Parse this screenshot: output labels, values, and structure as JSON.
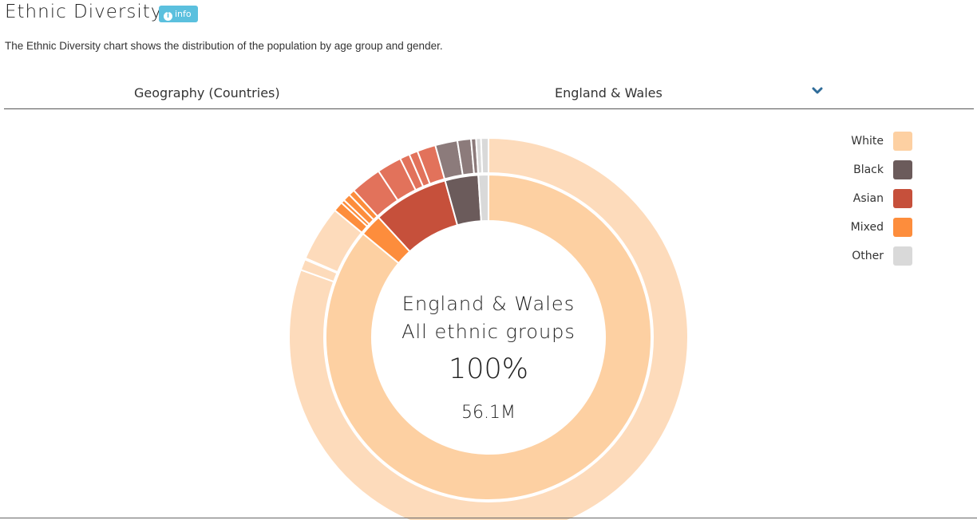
{
  "header": {
    "title": "Ethnic Diversity",
    "info_label": "info",
    "description": "The Ethnic Diversity chart shows the distribution of the population by age group and gender."
  },
  "filter": {
    "label": "Geography (Countries)",
    "selected": "England & Wales",
    "icon": "chevron-down-icon"
  },
  "legend": [
    {
      "label": "White",
      "color": "#fdd0a2"
    },
    {
      "label": "Black",
      "color": "#6b5b5b"
    },
    {
      "label": "Asian",
      "color": "#c6503b"
    },
    {
      "label": "Mixed",
      "color": "#fd8d3c"
    },
    {
      "label": "Other",
      "color": "#d9d9d9"
    }
  ],
  "center": {
    "line1": "England & Wales",
    "line2": "All ethnic groups",
    "percent": "100%",
    "total": "56.1M"
  },
  "chart_data": {
    "type": "pie",
    "title": "",
    "inner_ring": [
      {
        "name": "White",
        "value": 86.0,
        "color": "#fdd0a2"
      },
      {
        "name": "Mixed",
        "value": 2.2,
        "color": "#fd8d3c"
      },
      {
        "name": "Asian",
        "value": 7.5,
        "color": "#c6503b"
      },
      {
        "name": "Black",
        "value": 3.3,
        "color": "#6b5b5b"
      },
      {
        "name": "Other",
        "value": 1.0,
        "color": "#d9d9d9"
      }
    ],
    "outer_ring": [
      {
        "group": "White",
        "value": 80.5,
        "color": "#fddbbb"
      },
      {
        "group": "White",
        "value": 0.9,
        "color": "#fddbbb"
      },
      {
        "group": "White",
        "value": 0.1,
        "color": "#fddbbb"
      },
      {
        "group": "White",
        "value": 4.5,
        "color": "#fddbbb"
      },
      {
        "group": "Mixed",
        "value": 0.8,
        "color": "#fd8d3c"
      },
      {
        "group": "Mixed",
        "value": 0.3,
        "color": "#fd8d3c"
      },
      {
        "group": "Mixed",
        "value": 0.6,
        "color": "#fd8d3c"
      },
      {
        "group": "Mixed",
        "value": 0.5,
        "color": "#fd8d3c"
      },
      {
        "group": "Asian",
        "value": 2.5,
        "color": "#e2725b"
      },
      {
        "group": "Asian",
        "value": 2.0,
        "color": "#e2725b"
      },
      {
        "group": "Asian",
        "value": 0.8,
        "color": "#e2725b"
      },
      {
        "group": "Asian",
        "value": 0.7,
        "color": "#e2725b"
      },
      {
        "group": "Asian",
        "value": 1.5,
        "color": "#e2725b"
      },
      {
        "group": "Black",
        "value": 1.8,
        "color": "#8c7b7b"
      },
      {
        "group": "Black",
        "value": 1.1,
        "color": "#8c7b7b"
      },
      {
        "group": "Black",
        "value": 0.4,
        "color": "#8c7b7b"
      },
      {
        "group": "Other",
        "value": 0.4,
        "color": "#d9d9d9"
      },
      {
        "group": "Other",
        "value": 0.6,
        "color": "#d9d9d9"
      }
    ]
  }
}
